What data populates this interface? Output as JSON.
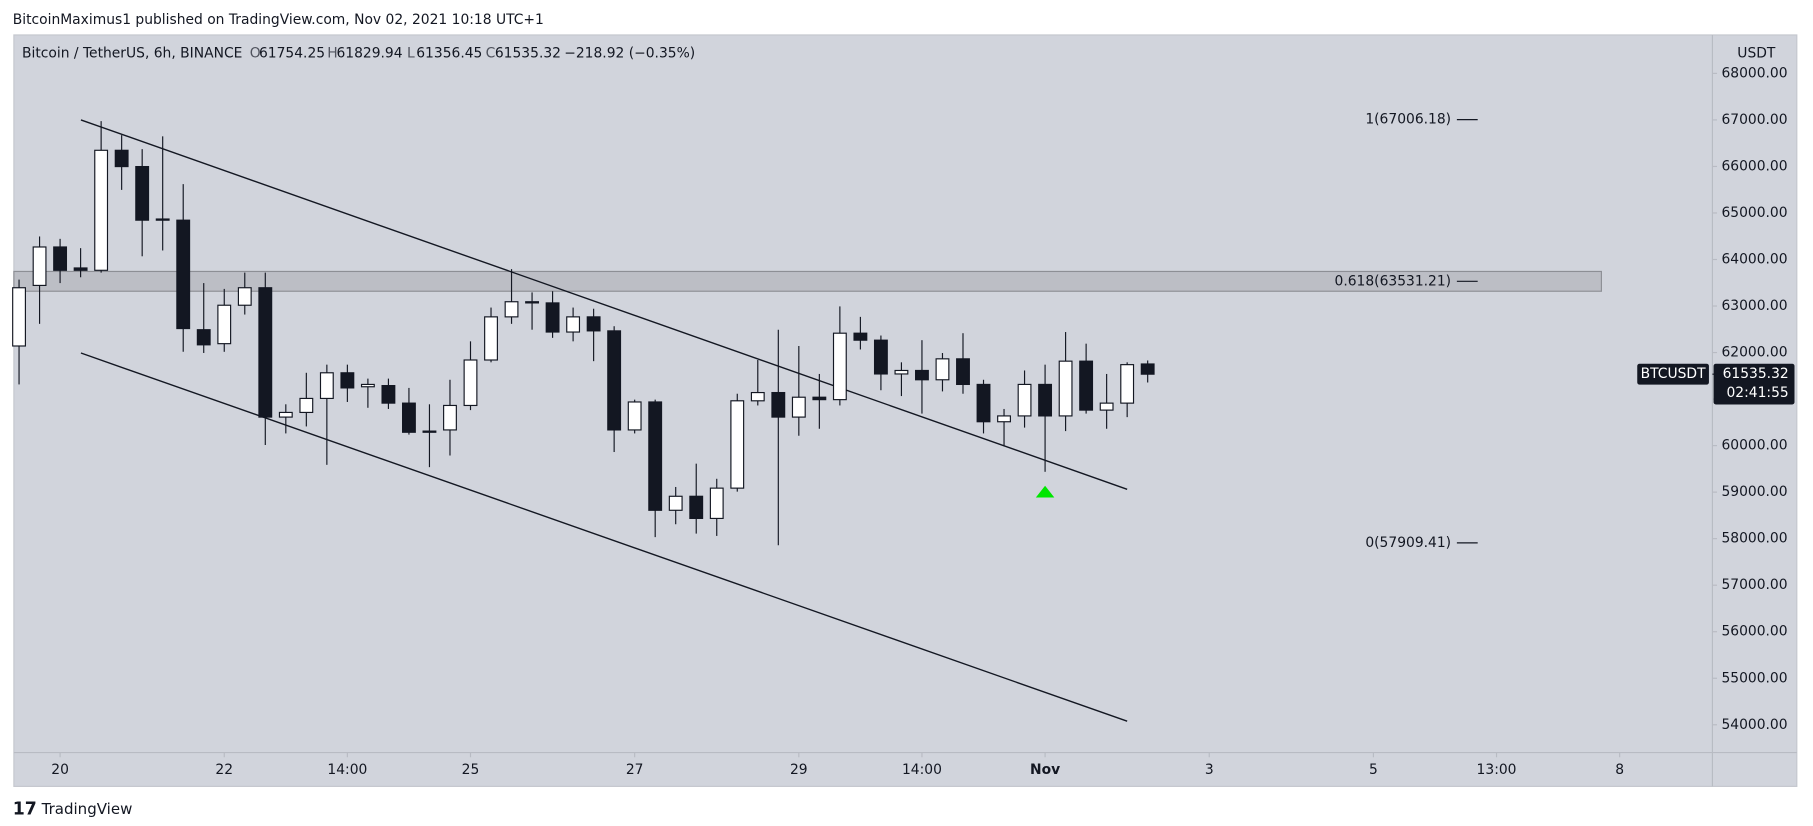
{
  "header": {
    "published": "BitcoinMaximus1 published on TradingView.com, Nov 02, 2021 10:18 UTC+1"
  },
  "footer": {
    "brand": "TradingView"
  },
  "chart_data": {
    "type": "candlestick",
    "title": "Bitcoin / TetherUS, 6h, BINANCE",
    "ohlc_letters": [
      "O",
      "H",
      "L",
      "C"
    ],
    "change": "−218.92 (−0.35%)",
    "y_axis_label": "USDT",
    "symbol": "BTCUSDT",
    "countdown": "02:41:55",
    "up_color": "#ffffff",
    "down_color": "#131722",
    "background": "#d1d4dc",
    "x": [
      -0.5,
      -0.25,
      0,
      0.25,
      0.5,
      0.75,
      1,
      1.25,
      1.5,
      1.75,
      2,
      2.25,
      2.5,
      2.75,
      3,
      3.25,
      3.5,
      3.75,
      4,
      4.25,
      4.5,
      4.75,
      5,
      5.25,
      5.5,
      5.75,
      6,
      6.25,
      6.5,
      6.75,
      7,
      7.25,
      7.5,
      7.75,
      8,
      8.25,
      8.5,
      8.75,
      9,
      9.25,
      9.5,
      9.75,
      10,
      10.25,
      10.5,
      10.75,
      11,
      11.25,
      11.5,
      11.75,
      12,
      12.25,
      12.5,
      12.75,
      13,
      13.25
    ],
    "open": [
      62141,
      63443,
      64269,
      63818,
      63768,
      66347,
      65997,
      64845,
      64845,
      62491,
      62191,
      63017,
      63393,
      60613,
      60713,
      61014,
      61565,
      61265,
      61290,
      60913,
      60287,
      60337,
      60863,
      61840,
      62767,
      63092,
      63067,
      62441,
      62767,
      62466,
      60337,
      60938,
      58610,
      58911,
      58435,
      59086,
      60963,
      61140,
      60613,
      61040,
      60988,
      62416,
      62266,
      61540,
      61615,
      61415,
      61865,
      61315,
      60513,
      60638,
      61315,
      60638,
      61815,
      60763,
      60913,
      61754.25
    ],
    "high": [
      63568,
      64495,
      64444,
      64244,
      66973,
      66673,
      66372,
      66647,
      65621,
      63493,
      63368,
      63718,
      63718,
      60888,
      61565,
      61740,
      61740,
      61440,
      61440,
      61240,
      60888,
      61415,
      62241,
      62967,
      63793,
      63293,
      63318,
      62967,
      62942,
      62566,
      60988,
      60988,
      59111,
      59612,
      59287,
      61115,
      61840,
      62491,
      62141,
      61540,
      62992,
      62767,
      62366,
      61790,
      62266,
      61990,
      62416,
      61415,
      60788,
      61615,
      61740,
      62441,
      62191,
      61540,
      61790,
      61829.94
    ],
    "low": [
      61315,
      62617,
      63493,
      63618,
      63718,
      65496,
      64069,
      64194,
      62016,
      61991,
      62016,
      62817,
      60012,
      60262,
      60412,
      59587,
      60938,
      60813,
      60788,
      60237,
      59537,
      59787,
      60763,
      61790,
      62617,
      62491,
      62316,
      62241,
      61815,
      59862,
      60262,
      58034,
      58310,
      58109,
      58059,
      59011,
      60863,
      57859,
      60212,
      60362,
      60863,
      62066,
      61190,
      61065,
      60688,
      61165,
      61115,
      60262,
      59988,
      60387,
      59437,
      60312,
      60688,
      60362,
      60612,
      61356.45
    ],
    "close": [
      63393,
      64269,
      63768,
      63768,
      66347,
      65997,
      64845,
      64870,
      62516,
      62166,
      63017,
      63393,
      60613,
      60713,
      61014,
      61565,
      61240,
      61315,
      60913,
      60287,
      60312,
      60863,
      61840,
      62767,
      63092,
      63067,
      62441,
      62767,
      62466,
      60337,
      60938,
      58610,
      58911,
      58435,
      59086,
      60963,
      61140,
      60613,
      61040,
      60988,
      62416,
      62266,
      61540,
      61615,
      61415,
      61865,
      61315,
      60513,
      60638,
      61315,
      60638,
      61815,
      60763,
      60913,
      61740,
      61535.32
    ],
    "xlim": [
      -0.563,
      20.13
    ],
    "ylim": [
      53402,
      68826
    ],
    "xticks": [
      {
        "value": 0,
        "label": "20"
      },
      {
        "value": 2,
        "label": "22"
      },
      {
        "value": 3.5,
        "label": "14:00"
      },
      {
        "value": 5,
        "label": "25"
      },
      {
        "value": 7,
        "label": "27"
      },
      {
        "value": 9,
        "label": "29"
      },
      {
        "value": 10.5,
        "label": "14:00"
      },
      {
        "value": 12,
        "label": "Nov"
      },
      {
        "value": 14,
        "label": "3"
      },
      {
        "value": 16,
        "label": "5"
      },
      {
        "value": 17.5,
        "label": "13:00"
      },
      {
        "value": 19,
        "label": "8"
      }
    ],
    "yticks": [
      {
        "value": 54000,
        "label": "54000.00"
      },
      {
        "value": 55000,
        "label": "55000.00"
      },
      {
        "value": 56000,
        "label": "56000.00"
      },
      {
        "value": 57000,
        "label": "57000.00"
      },
      {
        "value": 58000,
        "label": "58000.00"
      },
      {
        "value": 59000,
        "label": "59000.00"
      },
      {
        "value": 60000,
        "label": "60000.00"
      },
      {
        "value": 61000,
        "label": "61000.00"
      },
      {
        "value": 62000,
        "label": "62000.00"
      },
      {
        "value": 63000,
        "label": "63000.00"
      },
      {
        "value": 64000,
        "label": "64000.00"
      },
      {
        "value": 65000,
        "label": "65000.00"
      },
      {
        "value": 66000,
        "label": "66000.00"
      },
      {
        "value": 67000,
        "label": "67000.00"
      },
      {
        "value": 68000,
        "label": "68000.00"
      }
    ],
    "fib_levels": [
      {
        "label": "1(67006.18)",
        "value": 67006.18
      },
      {
        "label": "0.618(63531.21)",
        "value": 63531.21
      },
      {
        "label": "0(57909.41)",
        "value": 57909.41
      }
    ],
    "zone": [
      63318,
      63743
    ],
    "trendlines": [
      {
        "x": [
          0.254,
          13.0
        ],
        "y": [
          67000,
          59061
        ]
      },
      {
        "x": [
          0.254,
          13.0
        ],
        "y": [
          61990,
          54077
        ]
      }
    ],
    "signal": {
      "x": 12.0,
      "y": 59011,
      "color": "#00e600"
    }
  }
}
